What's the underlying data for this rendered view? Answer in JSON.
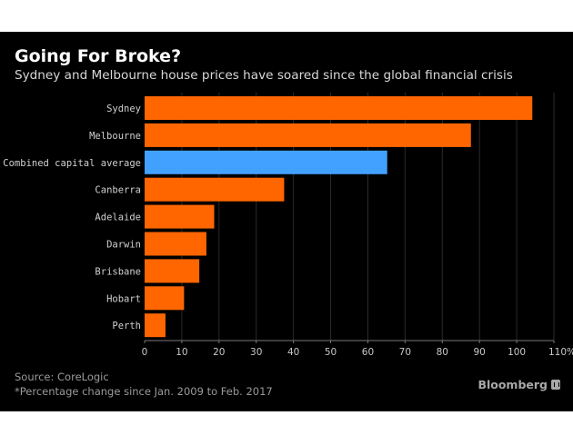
{
  "chart_data": {
    "type": "bar",
    "orientation": "horizontal",
    "title": "Going For Broke?",
    "subtitle": "Sydney and Melbourne house prices have soared since the global financial crisis",
    "categories": [
      "Sydney",
      "Melbourne",
      "Combined capital average",
      "Canberra",
      "Adelaide",
      "Darwin",
      "Brisbane",
      "Hobart",
      "Perth"
    ],
    "values": [
      104.2,
      87.7,
      65.2,
      37.5,
      18.7,
      16.6,
      14.7,
      10.6,
      5.6
    ],
    "highlight": "Combined capital average",
    "colors": {
      "default": "#ff6600",
      "highlight": "#42a1ff",
      "background": "#000000",
      "grid": "#2a2a2a",
      "axis": "#7a7a7a"
    },
    "xlabel": "",
    "ylabel": "",
    "xlim": [
      0,
      110
    ],
    "xticks": [
      0,
      10,
      20,
      30,
      40,
      50,
      60,
      70,
      80,
      90,
      100,
      110
    ],
    "xtick_labels": [
      "0",
      "10",
      "20",
      "30",
      "40",
      "50",
      "60",
      "70",
      "80",
      "90",
      "100",
      "110%"
    ],
    "grid": true,
    "legend": "none"
  },
  "footer": {
    "source": "Source: CoreLogic",
    "note": "*Percentage change since Jan. 2009 to Feb. 2017",
    "brand": "Bloomberg"
  }
}
